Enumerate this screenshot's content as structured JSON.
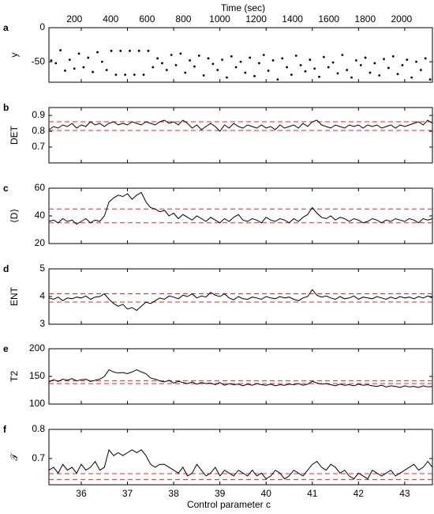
{
  "figure": {
    "top_axis_label": "Time (sec)",
    "bottom_axis_label": "Control parameter c",
    "top_ticks": [
      200,
      400,
      600,
      800,
      1000,
      1200,
      1400,
      1600,
      1800,
      2000
    ],
    "bottom_ticks": [
      36,
      37,
      38,
      39,
      40,
      41,
      42,
      43
    ],
    "x_range_time": [
      60,
      2170
    ],
    "x_range_c": [
      35.3,
      43.6
    ],
    "line_color": "#000000",
    "threshold_color": "#e8262a"
  },
  "chart_data": [
    {
      "panel": "a",
      "type": "scatter",
      "ylabel": "y",
      "ylim": [
        -80,
        0
      ],
      "yticks": [
        0,
        -50
      ],
      "x": [
        35.35,
        35.45,
        35.55,
        35.65,
        35.75,
        35.85,
        35.95,
        36.05,
        36.15,
        36.25,
        36.35,
        36.45,
        36.55,
        36.65,
        36.75,
        36.85,
        36.95,
        37.05,
        37.15,
        37.25,
        37.35,
        37.45,
        37.55,
        37.65,
        37.75,
        37.85,
        37.95,
        38.05,
        38.15,
        38.25,
        38.35,
        38.45,
        38.55,
        38.65,
        38.75,
        38.85,
        38.95,
        39.05,
        39.15,
        39.25,
        39.35,
        39.45,
        39.55,
        39.65,
        39.75,
        39.85,
        39.95,
        40.05,
        40.15,
        40.25,
        40.35,
        40.45,
        40.55,
        40.65,
        40.75,
        40.85,
        40.95,
        41.05,
        41.15,
        41.25,
        41.35,
        41.45,
        41.55,
        41.65,
        41.75,
        41.85,
        41.95,
        42.05,
        42.15,
        42.25,
        42.35,
        42.45,
        42.55,
        42.65,
        42.75,
        42.85,
        42.95,
        43.05,
        43.15,
        43.25,
        43.35,
        43.45,
        43.55
      ],
      "y": [
        -48,
        -52,
        -33,
        -63,
        -47,
        -60,
        -38,
        -58,
        -44,
        -65,
        -36,
        -50,
        -62,
        -34,
        -69,
        -34,
        -69,
        -34,
        -69,
        -34,
        -69,
        -34,
        -58,
        -45,
        -52,
        -62,
        -40,
        -55,
        -38,
        -66,
        -48,
        -57,
        -41,
        -70,
        -45,
        -53,
        -62,
        -47,
        -73,
        -42,
        -58,
        -50,
        -66,
        -44,
        -71,
        -52,
        -40,
        -63,
        -48,
        -76,
        -45,
        -58,
        -69,
        -41,
        -55,
        -64,
        -47,
        -60,
        -72,
        -43,
        -58,
        -51,
        -67,
        -40,
        -62,
        -73,
        -48,
        -55,
        -44,
        -66,
        -52,
        -70,
        -46,
        -59,
        -42,
        -68,
        -55,
        -47,
        -73,
        -50,
        -62,
        -45,
        -76
      ]
    },
    {
      "panel": "b",
      "type": "line",
      "ylabel": "DET",
      "ylim": [
        0.6,
        0.95
      ],
      "yticks": [
        0.7,
        0.8,
        0.9
      ],
      "thresholds": [
        0.805,
        0.86
      ],
      "x": [
        35.3,
        35.4,
        35.5,
        35.6,
        35.7,
        35.8,
        35.9,
        36.0,
        36.1,
        36.2,
        36.3,
        36.4,
        36.5,
        36.6,
        36.7,
        36.8,
        36.9,
        37.0,
        37.1,
        37.2,
        37.3,
        37.4,
        37.5,
        37.6,
        37.7,
        37.8,
        37.9,
        38.0,
        38.1,
        38.2,
        38.3,
        38.4,
        38.5,
        38.6,
        38.7,
        38.8,
        38.9,
        39.0,
        39.1,
        39.2,
        39.3,
        39.4,
        39.5,
        39.6,
        39.7,
        39.8,
        39.9,
        40.0,
        40.1,
        40.2,
        40.3,
        40.4,
        40.5,
        40.6,
        40.7,
        40.8,
        40.9,
        41.0,
        41.1,
        41.2,
        41.3,
        41.4,
        41.5,
        41.6,
        41.7,
        41.8,
        41.9,
        42.0,
        42.1,
        42.2,
        42.3,
        42.4,
        42.5,
        42.6,
        42.7,
        42.8,
        42.9,
        43.0,
        43.1,
        43.2,
        43.3,
        43.4,
        43.5,
        43.6
      ],
      "y": [
        0.81,
        0.83,
        0.82,
        0.84,
        0.83,
        0.85,
        0.82,
        0.84,
        0.83,
        0.86,
        0.84,
        0.85,
        0.83,
        0.85,
        0.86,
        0.84,
        0.85,
        0.84,
        0.86,
        0.85,
        0.84,
        0.86,
        0.85,
        0.84,
        0.86,
        0.87,
        0.85,
        0.86,
        0.84,
        0.87,
        0.85,
        0.82,
        0.84,
        0.81,
        0.83,
        0.85,
        0.83,
        0.8,
        0.84,
        0.82,
        0.85,
        0.83,
        0.82,
        0.84,
        0.83,
        0.82,
        0.84,
        0.82,
        0.83,
        0.81,
        0.84,
        0.82,
        0.83,
        0.84,
        0.82,
        0.85,
        0.83,
        0.86,
        0.87,
        0.84,
        0.83,
        0.82,
        0.84,
        0.83,
        0.82,
        0.84,
        0.83,
        0.84,
        0.82,
        0.84,
        0.83,
        0.84,
        0.82,
        0.83,
        0.84,
        0.82,
        0.84,
        0.83,
        0.84,
        0.85,
        0.86,
        0.84,
        0.87,
        0.85
      ]
    },
    {
      "panel": "c",
      "type": "line",
      "ylabel": "⟨D⟩",
      "ylim": [
        20,
        60
      ],
      "yticks": [
        20,
        40,
        60
      ],
      "thresholds": [
        35,
        45
      ],
      "x": [
        35.3,
        35.4,
        35.5,
        35.6,
        35.7,
        35.8,
        35.9,
        36.0,
        36.1,
        36.2,
        36.3,
        36.4,
        36.5,
        36.6,
        36.7,
        36.8,
        36.9,
        37.0,
        37.1,
        37.2,
        37.3,
        37.4,
        37.5,
        37.6,
        37.7,
        37.8,
        37.9,
        38.0,
        38.1,
        38.2,
        38.3,
        38.4,
        38.5,
        38.6,
        38.7,
        38.8,
        38.9,
        39.0,
        39.1,
        39.2,
        39.3,
        39.4,
        39.5,
        39.6,
        39.7,
        39.8,
        39.9,
        40.0,
        40.1,
        40.2,
        40.3,
        40.4,
        40.5,
        40.6,
        40.7,
        40.8,
        40.9,
        41.0,
        41.1,
        41.2,
        41.3,
        41.4,
        41.5,
        41.6,
        41.7,
        41.8,
        41.9,
        42.0,
        42.1,
        42.2,
        42.3,
        42.4,
        42.5,
        42.6,
        42.7,
        42.8,
        42.9,
        43.0,
        43.1,
        43.2,
        43.3,
        43.4,
        43.5,
        43.6
      ],
      "y": [
        36,
        37,
        35,
        38,
        36,
        37,
        34,
        36,
        38,
        35,
        37,
        36,
        40,
        50,
        53,
        55,
        54,
        56,
        52,
        55,
        57,
        50,
        46,
        45,
        43,
        44,
        40,
        42,
        38,
        41,
        39,
        37,
        40,
        38,
        36,
        39,
        37,
        35,
        38,
        36,
        39,
        41,
        37,
        36,
        38,
        37,
        35,
        39,
        37,
        36,
        38,
        37,
        35,
        38,
        36,
        39,
        41,
        46,
        42,
        39,
        38,
        40,
        37,
        39,
        38,
        36,
        38,
        37,
        35,
        36,
        38,
        37,
        35,
        37,
        36,
        38,
        37,
        36,
        38,
        37,
        35,
        38,
        37,
        38
      ]
    },
    {
      "panel": "d",
      "type": "line",
      "ylabel": "ENT",
      "ylim": [
        3,
        5
      ],
      "yticks": [
        3,
        4,
        5
      ],
      "thresholds": [
        3.8,
        4.1
      ],
      "x": [
        35.3,
        35.4,
        35.5,
        35.6,
        35.7,
        35.8,
        35.9,
        36.0,
        36.1,
        36.2,
        36.3,
        36.4,
        36.5,
        36.6,
        36.7,
        36.8,
        36.9,
        37.0,
        37.1,
        37.2,
        37.3,
        37.4,
        37.5,
        37.6,
        37.7,
        37.8,
        37.9,
        38.0,
        38.1,
        38.2,
        38.3,
        38.4,
        38.5,
        38.6,
        38.7,
        38.8,
        38.9,
        39.0,
        39.1,
        39.2,
        39.3,
        39.4,
        39.5,
        39.6,
        39.7,
        39.8,
        39.9,
        40.0,
        40.1,
        40.2,
        40.3,
        40.4,
        40.5,
        40.6,
        40.7,
        40.8,
        40.9,
        41.0,
        41.1,
        41.2,
        41.3,
        41.4,
        41.5,
        41.6,
        41.7,
        41.8,
        41.9,
        42.0,
        42.1,
        42.2,
        42.3,
        42.4,
        42.5,
        42.6,
        42.7,
        42.8,
        42.9,
        43.0,
        43.1,
        43.2,
        43.3,
        43.4,
        43.5,
        43.6
      ],
      "y": [
        3.95,
        3.9,
        3.98,
        3.85,
        3.95,
        3.92,
        3.98,
        3.95,
        4.02,
        3.9,
        3.98,
        4.0,
        4.1,
        3.9,
        3.75,
        3.65,
        3.72,
        3.55,
        3.6,
        3.5,
        3.65,
        3.8,
        3.75,
        3.85,
        3.95,
        3.9,
        4.02,
        3.98,
        3.92,
        4.05,
        4.0,
        4.1,
        3.95,
        4.02,
        3.98,
        4.15,
        4.05,
        4.0,
        4.1,
        3.95,
        3.88,
        4.0,
        3.92,
        3.9,
        3.98,
        3.95,
        3.9,
        4.0,
        3.95,
        3.92,
        4.0,
        3.95,
        3.98,
        3.9,
        3.85,
        3.95,
        4.0,
        4.25,
        4.05,
        3.98,
        4.02,
        3.95,
        3.9,
        4.0,
        3.92,
        3.95,
        4.02,
        3.9,
        3.98,
        3.95,
        3.92,
        4.0,
        3.95,
        3.9,
        3.98,
        3.92,
        4.0,
        3.95,
        3.98,
        3.92,
        4.0,
        3.95,
        4.02,
        3.95
      ]
    },
    {
      "panel": "e",
      "type": "line",
      "ylabel": "T2",
      "ylim": [
        100,
        200
      ],
      "yticks": [
        100,
        150,
        200
      ],
      "thresholds": [
        137,
        142
      ],
      "x": [
        35.3,
        35.4,
        35.5,
        35.6,
        35.7,
        35.8,
        35.9,
        36.0,
        36.1,
        36.2,
        36.3,
        36.4,
        36.5,
        36.6,
        36.7,
        36.8,
        36.9,
        37.0,
        37.1,
        37.2,
        37.3,
        37.4,
        37.5,
        37.6,
        37.7,
        37.8,
        37.9,
        38.0,
        38.1,
        38.2,
        38.3,
        38.4,
        38.5,
        38.6,
        38.7,
        38.8,
        38.9,
        39.0,
        39.1,
        39.2,
        39.3,
        39.4,
        39.5,
        39.6,
        39.7,
        39.8,
        39.9,
        40.0,
        40.1,
        40.2,
        40.3,
        40.4,
        40.5,
        40.6,
        40.7,
        40.8,
        40.9,
        41.0,
        41.1,
        41.2,
        41.3,
        41.4,
        41.5,
        41.6,
        41.7,
        41.8,
        41.9,
        42.0,
        42.1,
        42.2,
        42.3,
        42.4,
        42.5,
        42.6,
        42.7,
        42.8,
        42.9,
        43.0,
        43.1,
        43.2,
        43.3,
        43.4,
        43.5,
        43.6
      ],
      "y": [
        140,
        144,
        141,
        145,
        143,
        146,
        142,
        144,
        145,
        141,
        143,
        145,
        150,
        162,
        158,
        156,
        157,
        155,
        158,
        162,
        158,
        155,
        147,
        145,
        142,
        140,
        143,
        138,
        141,
        139,
        137,
        140,
        136,
        139,
        137,
        138,
        135,
        139,
        134,
        137,
        135,
        136,
        133,
        136,
        134,
        137,
        135,
        134,
        136,
        133,
        135,
        134,
        136,
        135,
        137,
        134,
        136,
        141,
        138,
        136,
        137,
        135,
        133,
        136,
        134,
        135,
        133,
        136,
        134,
        135,
        133,
        132,
        134,
        131,
        133,
        132,
        130,
        133,
        131,
        132,
        130,
        133,
        131,
        132
      ]
    },
    {
      "panel": "f",
      "type": "line",
      "ylabel": "𝒯",
      "ylim": [
        0.61,
        0.8
      ],
      "yticks": [
        0.7,
        0.8
      ],
      "thresholds": [
        0.628,
        0.648
      ],
      "x": [
        35.3,
        35.4,
        35.5,
        35.6,
        35.7,
        35.8,
        35.9,
        36.0,
        36.1,
        36.2,
        36.3,
        36.4,
        36.5,
        36.6,
        36.7,
        36.8,
        36.9,
        37.0,
        37.1,
        37.2,
        37.3,
        37.4,
        37.5,
        37.6,
        37.7,
        37.8,
        37.9,
        38.0,
        38.1,
        38.2,
        38.3,
        38.4,
        38.5,
        38.6,
        38.7,
        38.8,
        38.9,
        39.0,
        39.1,
        39.2,
        39.3,
        39.4,
        39.5,
        39.6,
        39.7,
        39.8,
        39.9,
        40.0,
        40.1,
        40.2,
        40.3,
        40.4,
        40.5,
        40.6,
        40.7,
        40.8,
        40.9,
        41.0,
        41.1,
        41.2,
        41.3,
        41.4,
        41.5,
        41.6,
        41.7,
        41.8,
        41.9,
        42.0,
        42.1,
        42.2,
        42.3,
        42.4,
        42.5,
        42.6,
        42.7,
        42.8,
        42.9,
        43.0,
        43.1,
        43.2,
        43.3,
        43.4,
        43.5,
        43.6
      ],
      "y": [
        0.66,
        0.67,
        0.65,
        0.68,
        0.66,
        0.67,
        0.65,
        0.68,
        0.66,
        0.67,
        0.69,
        0.66,
        0.67,
        0.73,
        0.71,
        0.72,
        0.71,
        0.72,
        0.73,
        0.72,
        0.73,
        0.71,
        0.68,
        0.67,
        0.68,
        0.68,
        0.67,
        0.66,
        0.65,
        0.67,
        0.64,
        0.65,
        0.68,
        0.66,
        0.64,
        0.65,
        0.67,
        0.64,
        0.66,
        0.65,
        0.64,
        0.66,
        0.65,
        0.64,
        0.66,
        0.64,
        0.65,
        0.63,
        0.64,
        0.66,
        0.65,
        0.63,
        0.64,
        0.66,
        0.65,
        0.64,
        0.66,
        0.68,
        0.69,
        0.67,
        0.66,
        0.68,
        0.67,
        0.65,
        0.66,
        0.64,
        0.63,
        0.65,
        0.64,
        0.63,
        0.66,
        0.65,
        0.64,
        0.65,
        0.66,
        0.64,
        0.65,
        0.66,
        0.67,
        0.68,
        0.66,
        0.67,
        0.69,
        0.67
      ]
    }
  ]
}
